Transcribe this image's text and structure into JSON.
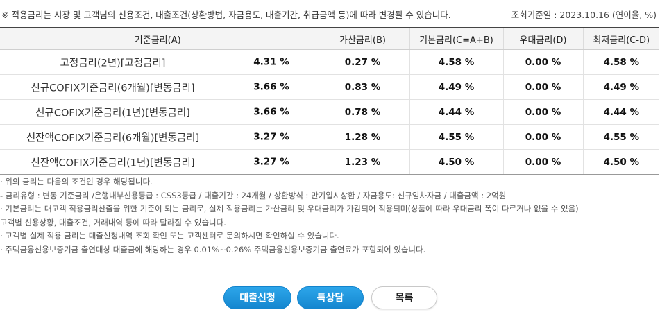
{
  "notice": "※ 적용금리는 시장 및 고객님의 신용조건, 대출조건(상환방법, 자금용도, 대출기간, 취급금액 등)에 따라 변경될 수 있습니다.",
  "reference_date": "조회기준일 : 2023.10.16 (연이율, %)",
  "table": {
    "headers": [
      "기준금리(A)",
      "가산금리(B)",
      "기본금리(C=A+B)",
      "우대금리(D)",
      "최저금리(C-D)"
    ],
    "rows": [
      {
        "name": "고정금리(2년)[고정금리]",
        "base": "4.31 %",
        "spread": "0.27 %",
        "basic": "4.58 %",
        "pref": "0.00 %",
        "min": "4.58 %"
      },
      {
        "name": "신규COFIX기준금리(6개월)[변동금리]",
        "base": "3.66 %",
        "spread": "0.83 %",
        "basic": "4.49 %",
        "pref": "0.00 %",
        "min": "4.49 %"
      },
      {
        "name": "신규COFIX기준금리(1년)[변동금리]",
        "base": "3.66 %",
        "spread": "0.78 %",
        "basic": "4.44 %",
        "pref": "0.00 %",
        "min": "4.44 %"
      },
      {
        "name": "신잔액COFIX기준금리(6개월)[변동금리]",
        "base": "3.27 %",
        "spread": "1.28 %",
        "basic": "4.55 %",
        "pref": "0.00 %",
        "min": "4.55 %"
      },
      {
        "name": "신잔액COFIX기준금리(1년)[변동금리]",
        "base": "3.27 %",
        "spread": "1.23 %",
        "basic": "4.50 %",
        "pref": "0.00 %",
        "min": "4.50 %"
      }
    ]
  },
  "notes": [
    "· 위의 금리는 다음의 조건인 경우 해당됩니다.",
    "  - 금리유형 : 변동 기준금리 /은행내부신용등급 : CSS3등급 / 대출기간 : 24개월 / 상환방식 : 만기일시상환 / 자금용도: 신규임차자금 / 대출금액 : 2억원",
    "· 기본금리는 대고객 적용금리산출을 위한 기준이 되는 금리로, 실제 적용금리는 가산금리 및 우대금리가 가감되어 적용되며(상품에 따라 우대금리 폭이 다르거나 없을 수 있음)",
    "  고객별 신용상황, 대출조건, 거래내역 등에 따라 달라질 수 있습니다.",
    "· 고객별 실제 적용 금리는 대출신청내역 조회 확인 또는 고객센터로 문의하시면 확인하실 수 있습니다.",
    "· 주택금융신용보증기금 출연대상 대출금에 해당하는 경우 0.01%~0.26% 주택금융신용보증기금 출연료가 포함되어 있습니다."
  ],
  "buttons": {
    "apply": "대출신청",
    "special": "특상담",
    "list": "목록"
  },
  "colors": {
    "primary_button": "#1a8fd9",
    "header_bg": "#f4f4f4"
  }
}
